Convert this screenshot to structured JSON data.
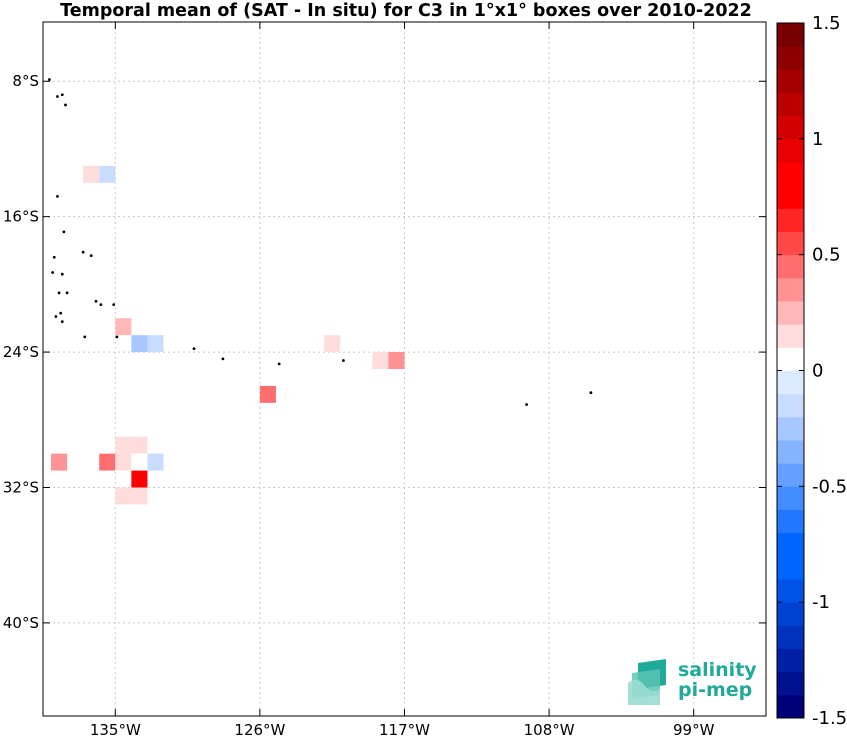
{
  "chart_data": {
    "type": "heatmap",
    "title": "Temporal mean of (SAT - In situ) for C3 in 1°x1° boxes over 2010-2022",
    "xlim": [
      -139.5,
      -94.5
    ],
    "ylim": [
      -45.5,
      -4.5
    ],
    "x_ticks": [
      {
        "value": -135,
        "label": "135°W"
      },
      {
        "value": -126,
        "label": "126°W"
      },
      {
        "value": -117,
        "label": "117°W"
      },
      {
        "value": -108,
        "label": "108°W"
      },
      {
        "value": -99,
        "label": "99°W"
      }
    ],
    "y_ticks": [
      {
        "value": -8,
        "label": "8°S"
      },
      {
        "value": -16,
        "label": "16°S"
      },
      {
        "value": -24,
        "label": "24°S"
      },
      {
        "value": -32,
        "label": "32°S"
      },
      {
        "value": -40,
        "label": "40°S"
      }
    ],
    "grid": true,
    "cells": [
      {
        "lon": -136.5,
        "lat": -13.5,
        "value": 0.15
      },
      {
        "lon": -135.5,
        "lat": -13.5,
        "value": -0.15
      },
      {
        "lon": -134.5,
        "lat": -22.5,
        "value": 0.25
      },
      {
        "lon": -133.5,
        "lat": -23.5,
        "value": -0.25
      },
      {
        "lon": -132.5,
        "lat": -23.5,
        "value": -0.15
      },
      {
        "lon": -121.5,
        "lat": -23.5,
        "value": 0.15
      },
      {
        "lon": -118.5,
        "lat": -24.5,
        "value": 0.15
      },
      {
        "lon": -117.5,
        "lat": -24.5,
        "value": 0.35
      },
      {
        "lon": -125.5,
        "lat": -26.5,
        "value": 0.45
      },
      {
        "lon": -134.5,
        "lat": -29.5,
        "value": 0.15
      },
      {
        "lon": -133.5,
        "lat": -29.5,
        "value": 0.15
      },
      {
        "lon": -138.5,
        "lat": -30.5,
        "value": 0.35
      },
      {
        "lon": -135.5,
        "lat": -30.5,
        "value": 0.45
      },
      {
        "lon": -134.5,
        "lat": -30.5,
        "value": 0.15
      },
      {
        "lon": -133.5,
        "lat": -30.5,
        "value": 0.05
      },
      {
        "lon": -132.5,
        "lat": -30.5,
        "value": -0.15
      },
      {
        "lon": -133.5,
        "lat": -31.5,
        "value": 0.85
      },
      {
        "lon": -134.5,
        "lat": -32.5,
        "value": 0.15
      },
      {
        "lon": -133.5,
        "lat": -32.5,
        "value": 0.15
      }
    ],
    "land": [
      [
        -139.1,
        -7.9
      ],
      [
        -138.6,
        -8.9
      ],
      [
        -138.3,
        -8.8
      ],
      [
        -138.1,
        -9.4
      ],
      [
        -138.6,
        -14.8
      ],
      [
        -138.2,
        -16.9
      ],
      [
        -138.8,
        -18.4
      ],
      [
        -138.9,
        -19.3
      ],
      [
        -138.3,
        -19.4
      ],
      [
        -137.0,
        -18.1
      ],
      [
        -136.5,
        -18.3
      ],
      [
        -138.5,
        -20.5
      ],
      [
        -138.0,
        -20.5
      ],
      [
        -136.2,
        -21.0
      ],
      [
        -135.9,
        -21.2
      ],
      [
        -135.1,
        -21.2
      ],
      [
        -138.7,
        -21.9
      ],
      [
        -138.4,
        -21.7
      ],
      [
        -138.3,
        -22.2
      ],
      [
        -136.9,
        -23.1
      ],
      [
        -134.9,
        -23.1
      ],
      [
        -130.1,
        -23.8
      ],
      [
        -128.3,
        -24.4
      ],
      [
        -124.8,
        -24.7
      ],
      [
        -120.8,
        -24.5
      ],
      [
        -109.4,
        -27.1
      ],
      [
        -105.4,
        -26.4
      ]
    ],
    "colorbar": {
      "min": -1.5,
      "max": 1.5,
      "levels": 30,
      "tick_labels": [
        "1.5",
        "1",
        "0.5",
        "0",
        "-0.5",
        "-1",
        "-1.5"
      ],
      "tick_values": [
        1.5,
        1.0,
        0.5,
        0.0,
        -0.5,
        -1.0,
        -1.5
      ]
    }
  },
  "logo": {
    "line1": "salinity",
    "line2": "pi-mep"
  }
}
